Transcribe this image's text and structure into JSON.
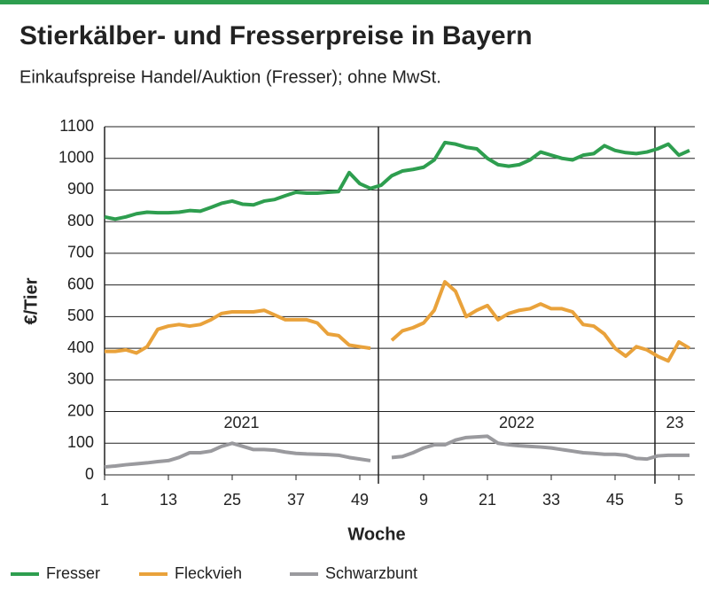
{
  "chart_data": {
    "type": "line",
    "title": "Stierkälber- und Fresserpreise in Bayern",
    "subtitle": "Einkaufspreise Handel/Auktion (Fresser); ohne MwSt.",
    "ylabel": "€/Tier",
    "xlabel": "Woche",
    "xlim": [
      1,
      112
    ],
    "ylim": [
      0,
      1100
    ],
    "yticks": [
      0,
      100,
      200,
      300,
      400,
      500,
      600,
      700,
      800,
      900,
      1000,
      1100
    ],
    "xticks": [
      1,
      13,
      25,
      37,
      49,
      {
        "value": 61,
        "label": "9"
      },
      {
        "value": 73,
        "label": "21"
      },
      {
        "value": 85,
        "label": "33"
      },
      {
        "value": 97,
        "label": "45"
      },
      {
        "value": 109,
        "label": "5"
      }
    ],
    "year_breaks": [
      52.5,
      104.5
    ],
    "years": [
      "2021",
      "2022",
      "23"
    ],
    "grid": true,
    "legend": "bottom",
    "x": [
      1,
      3,
      5,
      7,
      9,
      11,
      13,
      15,
      17,
      19,
      21,
      23,
      25,
      27,
      29,
      31,
      33,
      35,
      37,
      39,
      41,
      43,
      45,
      47,
      49,
      51,
      53,
      55,
      57,
      59,
      61,
      63,
      65,
      67,
      69,
      71,
      73,
      75,
      77,
      79,
      81,
      83,
      85,
      87,
      89,
      91,
      93,
      95,
      97,
      99,
      101,
      103,
      105,
      107,
      109,
      111
    ],
    "series": [
      {
        "name": "Fresser",
        "color": "#2e9e4f",
        "values": [
          815,
          808,
          815,
          825,
          830,
          828,
          828,
          830,
          835,
          833,
          845,
          858,
          865,
          855,
          853,
          865,
          870,
          882,
          893,
          890,
          890,
          893,
          895,
          955,
          920,
          905,
          915,
          945,
          960,
          965,
          972,
          995,
          1050,
          1045,
          1035,
          1030,
          1000,
          980,
          975,
          980,
          995,
          1020,
          1010,
          1000,
          995,
          1010,
          1015,
          1040,
          1025,
          1018,
          1015,
          1020,
          1030,
          1045,
          1010,
          1025
        ]
      },
      {
        "name": "Fleckvieh",
        "color": "#e9a23b",
        "values": [
          390,
          390,
          395,
          385,
          405,
          460,
          470,
          475,
          470,
          475,
          490,
          510,
          515,
          515,
          515,
          520,
          505,
          490,
          490,
          490,
          480,
          445,
          440,
          410,
          405,
          400,
          null,
          425,
          455,
          465,
          480,
          520,
          610,
          580,
          500,
          520,
          535,
          490,
          510,
          520,
          525,
          540,
          525,
          525,
          515,
          475,
          470,
          445,
          400,
          375,
          405,
          395,
          375,
          360,
          420,
          400
        ]
      },
      {
        "name": "Schwarzbunt",
        "color": "#9a9a9e",
        "values": [
          25,
          28,
          32,
          35,
          38,
          42,
          45,
          55,
          70,
          70,
          75,
          90,
          100,
          90,
          80,
          80,
          78,
          72,
          68,
          66,
          65,
          64,
          62,
          55,
          50,
          45,
          null,
          55,
          58,
          70,
          85,
          95,
          95,
          110,
          118,
          120,
          122,
          100,
          95,
          92,
          90,
          88,
          85,
          80,
          75,
          70,
          68,
          65,
          65,
          62,
          52,
          50,
          60,
          62,
          62,
          62
        ]
      }
    ]
  }
}
